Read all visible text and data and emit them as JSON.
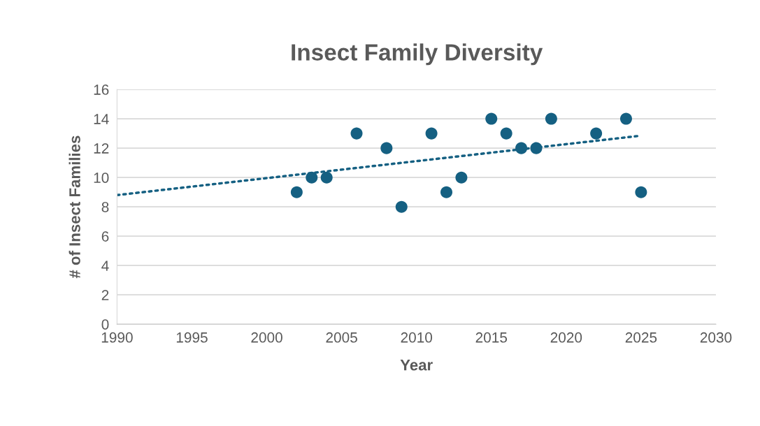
{
  "chart_data": {
    "type": "scatter",
    "title": "Insect Family Diversity",
    "xlabel": "Year",
    "ylabel": "# of Insect Families",
    "series": [
      {
        "color": "#156082",
        "x": [
          2002,
          2003,
          2004,
          2006,
          2008,
          2009,
          2011,
          2012,
          2013,
          2015,
          2016,
          2017,
          2018,
          2019,
          2022,
          2024,
          2025
        ],
        "values": [
          9,
          10,
          10,
          13,
          12,
          8,
          13,
          9,
          10,
          14,
          13,
          12,
          12,
          14,
          13,
          14,
          9
        ],
        "marker": "circle"
      },
      {
        "type": "line",
        "color": "#156082",
        "x": [
          1990,
          2025
        ],
        "values": [
          8.8,
          12.85
        ],
        "line_style": "dotted",
        "marker": "none"
      }
    ],
    "xlim": [
      1990,
      2030
    ],
    "xticks": [
      1990,
      1995,
      2000,
      2005,
      2010,
      2015,
      2020,
      2025,
      2030
    ],
    "ylim": [
      0,
      16
    ],
    "yticks": [
      0,
      2,
      4,
      6,
      8,
      10,
      12,
      14,
      16
    ],
    "grid": "y",
    "legend": false
  }
}
